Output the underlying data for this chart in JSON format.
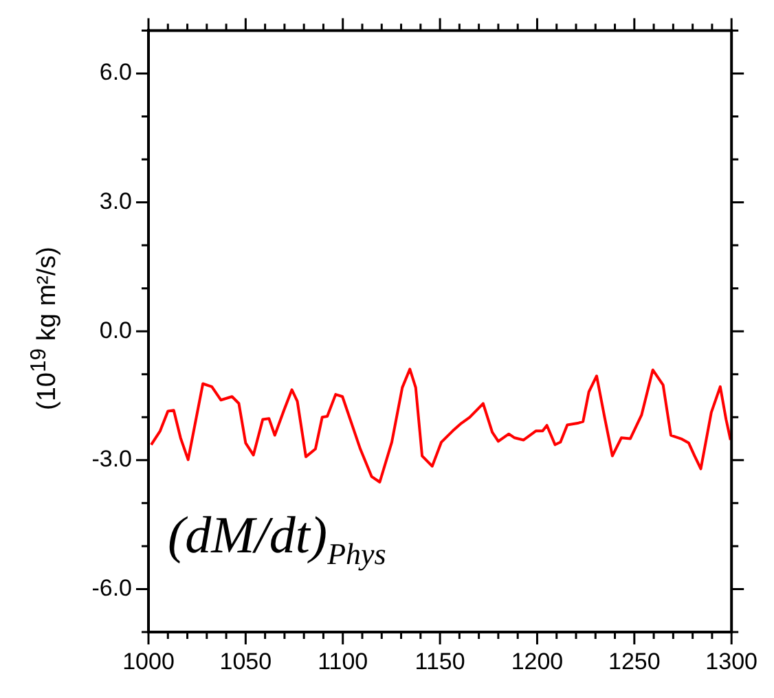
{
  "chart_data": {
    "type": "line",
    "ylabel": "(10$^{19}$ kg m²/s)",
    "annotations": [
      "(dM/dt)$_{Phys}$"
    ],
    "x": [
      1001.4,
      1006,
      1010,
      1013,
      1016.5,
      1020.4,
      1028,
      1032.6,
      1037.3,
      1043,
      1046.5,
      1050,
      1054,
      1058.8,
      1062,
      1065,
      1069.7,
      1073.8,
      1076.6,
      1081,
      1085.9,
      1089.4,
      1092,
      1096.3,
      1099.8,
      1105,
      1109,
      1114.8,
      1119,
      1125.2,
      1130.6,
      1134.5,
      1137.5,
      1140.8,
      1146,
      1150.7,
      1156.5,
      1161,
      1165.3,
      1169.2,
      1172.2,
      1176.9,
      1180,
      1185.4,
      1188.4,
      1193,
      1199.3,
      1202.8,
      1205,
      1209.2,
      1212,
      1215.5,
      1220.8,
      1223.6,
      1226.6,
      1230.6,
      1234.7,
      1238.7,
      1243.3,
      1247.9,
      1253.7,
      1259.5,
      1264.8,
      1268.8,
      1274.5,
      1278,
      1281,
      1284.2,
      1289.6,
      1294.2,
      1297.2,
      1299.5
    ],
    "series": [
      {
        "color": "#ff0000",
        "values": [
          -2.64,
          -2.32,
          -1.86,
          -1.84,
          -2.48,
          -2.99,
          -1.22,
          -1.29,
          -1.6,
          -1.52,
          -1.68,
          -2.6,
          -2.88,
          -2.05,
          -2.03,
          -2.42,
          -1.84,
          -1.36,
          -1.63,
          -2.92,
          -2.74,
          -2.0,
          -1.98,
          -1.47,
          -1.52,
          -2.21,
          -2.74,
          -3.38,
          -3.51,
          -2.58,
          -1.31,
          -0.88,
          -1.31,
          -2.9,
          -3.14,
          -2.58,
          -2.32,
          -2.14,
          -2.0,
          -1.82,
          -1.68,
          -2.35,
          -2.56,
          -2.39,
          -2.48,
          -2.53,
          -2.32,
          -2.32,
          -2.19,
          -2.64,
          -2.58,
          -2.18,
          -2.14,
          -2.1,
          -1.41,
          -1.04,
          -2.0,
          -2.9,
          -2.48,
          -2.5,
          -1.95,
          -0.9,
          -1.25,
          -2.42,
          -2.51,
          -2.6,
          -2.9,
          -3.2,
          -1.89,
          -1.29,
          -2.05,
          -2.53
        ]
      }
    ],
    "xlim": [
      1000,
      1300
    ],
    "xticks": [
      1000,
      {
        "value": 1010,
        "label": null
      },
      {
        "value": 1020,
        "label": null
      },
      {
        "value": 1030,
        "label": null
      },
      {
        "value": 1040,
        "label": null
      },
      1050,
      {
        "value": 1060,
        "label": null
      },
      {
        "value": 1070,
        "label": null
      },
      {
        "value": 1080,
        "label": null
      },
      {
        "value": 1090,
        "label": null
      },
      1100,
      {
        "value": 1110,
        "label": null
      },
      {
        "value": 1120,
        "label": null
      },
      {
        "value": 1130,
        "label": null
      },
      {
        "value": 1140,
        "label": null
      },
      1150,
      {
        "value": 1160,
        "label": null
      },
      {
        "value": 1170,
        "label": null
      },
      {
        "value": 1180,
        "label": null
      },
      {
        "value": 1190,
        "label": null
      },
      1200,
      {
        "value": 1210,
        "label": null
      },
      {
        "value": 1220,
        "label": null
      },
      {
        "value": 1230,
        "label": null
      },
      {
        "value": 1240,
        "label": null
      },
      1250,
      {
        "value": 1260,
        "label": null
      },
      {
        "value": 1270,
        "label": null
      },
      {
        "value": 1280,
        "label": null
      },
      {
        "value": 1290,
        "label": null
      },
      1300
    ],
    "ylim": [
      -7,
      7
    ],
    "yticks": [
      {
        "value": -7,
        "label": null
      },
      {
        "value": -6,
        "label": "-6.0"
      },
      {
        "value": -5,
        "label": null
      },
      {
        "value": -4,
        "label": null
      },
      {
        "value": -3,
        "label": "-3.0"
      },
      {
        "value": -2,
        "label": null
      },
      {
        "value": -1,
        "label": null
      },
      {
        "value": 0,
        "label": "0.0"
      },
      {
        "value": 1,
        "label": null
      },
      {
        "value": 2,
        "label": null
      },
      {
        "value": 3,
        "label": "3.0"
      },
      {
        "value": 4,
        "label": null
      },
      {
        "value": 5,
        "label": null
      },
      {
        "value": 6,
        "label": "6.0"
      },
      {
        "value": 7,
        "label": null
      }
    ],
    "grid": false,
    "legend": false,
    "marker": "none",
    "line_style": "solid"
  }
}
